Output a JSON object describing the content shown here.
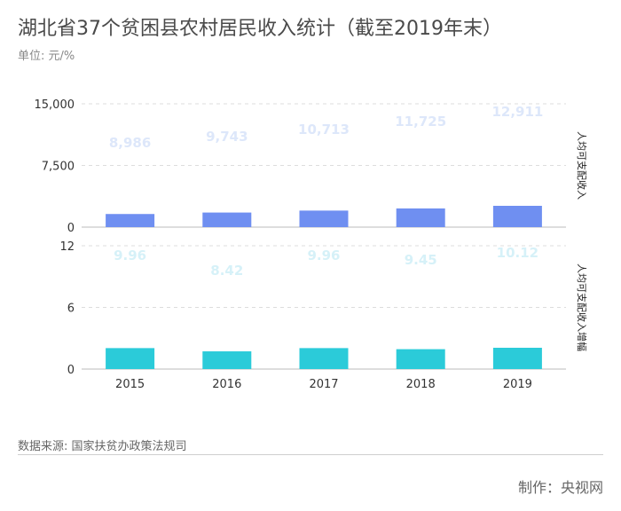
{
  "header": {
    "title": "湖北省37个贫困县农村居民收入统计（截至2019年末）",
    "unit": "单位: 元/%"
  },
  "footer": {
    "source": "数据来源: 国家扶贫办政策法规司",
    "credit": "制作：央视网"
  },
  "colors": {
    "income_bar": "#6f8ff1",
    "growth_bar": "#2bcbd9",
    "income_label": "#dde7fa",
    "growth_label": "#d6f1f8",
    "grid": "#dddddd",
    "axis_text": "#333333"
  },
  "chart_data": [
    {
      "type": "bar",
      "categories": [
        "2015",
        "2016",
        "2017",
        "2018",
        "2019"
      ],
      "series": [
        {
          "name": "人均可支配收入",
          "values": [
            8986,
            9743,
            10713,
            11725,
            12911
          ]
        }
      ],
      "data_labels": [
        "8,986",
        "9,743",
        "10,713",
        "11,725",
        "12,911"
      ],
      "ylim": [
        0,
        15000
      ],
      "yticks": [
        0,
        7500,
        15000
      ],
      "ytick_labels": [
        "0",
        "7,500",
        "15,000"
      ],
      "grid": true
    },
    {
      "type": "bar",
      "categories": [
        "2015",
        "2016",
        "2017",
        "2018",
        "2019"
      ],
      "series": [
        {
          "name": "人均可支配收入增幅",
          "values": [
            9.96,
            8.42,
            9.96,
            9.45,
            10.12
          ]
        }
      ],
      "data_labels": [
        "9.96",
        "8.42",
        "9.96",
        "9.45",
        "10.12"
      ],
      "ylim": [
        0,
        12
      ],
      "yticks": [
        0,
        6,
        12
      ],
      "ytick_labels": [
        "0",
        "6",
        "12"
      ],
      "grid": true
    }
  ]
}
